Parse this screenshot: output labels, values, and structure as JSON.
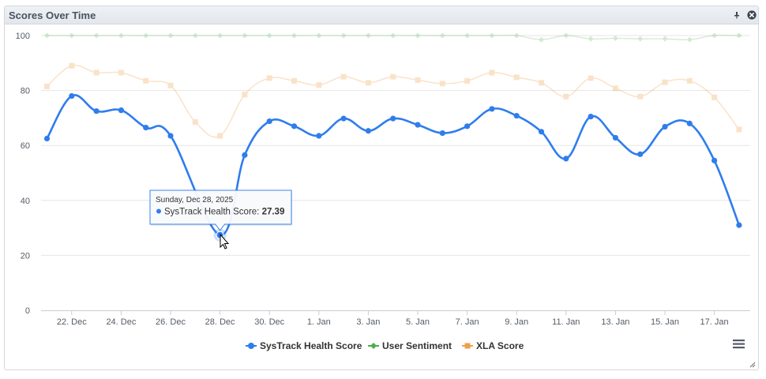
{
  "panel": {
    "title": "Scores Over Time"
  },
  "colors": {
    "systrack": "#2f7ded",
    "sentiment": "#4cae4c",
    "xla": "#f0a04b",
    "grid": "#e6e6e6",
    "axis": "#c8ccd2"
  },
  "icons": {
    "pin": "pin-icon",
    "close": "close-icon",
    "menu": "hamburger-menu-icon",
    "resize": "resize-handle-icon"
  },
  "tooltip": {
    "date": "Sunday, Dec 28, 2025",
    "series": "SysTrack Health Score",
    "value": "27.39",
    "point_index": 7
  },
  "chart_data": {
    "type": "line",
    "title": "Scores Over Time",
    "x": [
      "Dec 21",
      "Dec 22",
      "Dec 23",
      "Dec 24",
      "Dec 25",
      "Dec 26",
      "Dec 27",
      "Dec 28",
      "Dec 29",
      "Dec 30",
      "Dec 31",
      "Jan 1",
      "Jan 2",
      "Jan 3",
      "Jan 4",
      "Jan 5",
      "Jan 6",
      "Jan 7",
      "Jan 8",
      "Jan 9",
      "Jan 10",
      "Jan 11",
      "Jan 12",
      "Jan 13",
      "Jan 14",
      "Jan 15",
      "Jan 16",
      "Jan 17",
      "Jan 18"
    ],
    "x_tick_labels": [
      "22. Dec",
      "24. Dec",
      "26. Dec",
      "28. Dec",
      "30. Dec",
      "1. Jan",
      "3. Jan",
      "5. Jan",
      "7. Jan",
      "9. Jan",
      "11. Jan",
      "13. Jan",
      "15. Jan",
      "17. Jan"
    ],
    "x_tick_indices": [
      1,
      3,
      5,
      7,
      9,
      11,
      13,
      15,
      17,
      19,
      21,
      23,
      25,
      27
    ],
    "ylim": [
      0,
      100
    ],
    "y_ticks": [
      0,
      20,
      40,
      60,
      80,
      100
    ],
    "grid": true,
    "legend_position": "bottom",
    "series": [
      {
        "name": "SysTrack Health Score",
        "values": [
          62.5,
          78,
          72.5,
          72.8,
          66.5,
          63.5,
          null,
          27.39,
          56.5,
          68.8,
          67,
          63.5,
          69.8,
          65.3,
          69.8,
          67.5,
          64.5,
          67,
          73.3,
          70.8,
          65,
          55.2,
          70.5,
          62.8,
          56.8,
          66.8,
          68,
          54.5,
          31
        ]
      },
      {
        "name": "User Sentiment",
        "values": [
          100,
          100,
          100,
          100,
          100,
          100,
          100,
          100,
          100,
          100,
          100,
          100,
          100,
          100,
          100,
          100,
          100,
          100,
          100,
          100,
          98.5,
          100,
          98.8,
          99,
          98.8,
          98.8,
          98.5,
          100,
          100
        ]
      },
      {
        "name": "XLA Score",
        "values": [
          81.5,
          89,
          86.5,
          86.5,
          83.5,
          81.8,
          68.5,
          63.5,
          78.5,
          84.5,
          83.5,
          82,
          85,
          82.8,
          85,
          83.8,
          82.5,
          83.5,
          86.5,
          84.8,
          82.8,
          77.8,
          84.5,
          80.8,
          77.8,
          83,
          83.5,
          77.5,
          65.8
        ]
      }
    ]
  },
  "legend": [
    {
      "label": "SysTrack Health Score"
    },
    {
      "label": "User Sentiment"
    },
    {
      "label": "XLA Score"
    }
  ]
}
